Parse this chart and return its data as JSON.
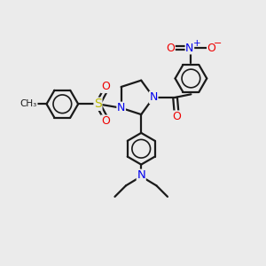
{
  "bg_color": "#ebebeb",
  "bond_color": "#1a1a1a",
  "bond_width": 1.6,
  "atom_colors": {
    "N": "#0000ee",
    "O": "#ee0000",
    "S": "#bbbb00",
    "C": "#1a1a1a"
  },
  "font_size_atom": 8.5,
  "font_size_small": 7.0,
  "figsize": [
    3.0,
    3.0
  ],
  "dpi": 100
}
